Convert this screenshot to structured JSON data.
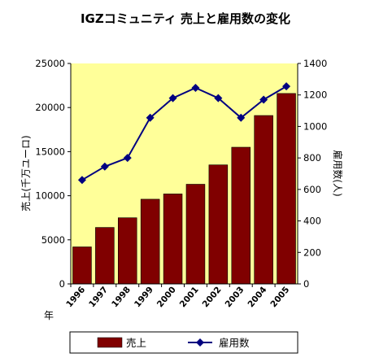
{
  "chart_data": {
    "type": "bar",
    "title": "IGZコミュニティ 売上と雇用数の変化",
    "xlabel": "年",
    "ylabel": "売上(千万ユーロ)",
    "y2label": "雇用数(人)",
    "categories": [
      "1996",
      "1997",
      "1998",
      "1999",
      "2000",
      "2001",
      "2002",
      "2003",
      "2004",
      "2005"
    ],
    "ylim": [
      0,
      25000
    ],
    "y2lim": [
      0,
      1400
    ],
    "yticks": [
      "0",
      "5000",
      "10000",
      "15000",
      "20000",
      "25000"
    ],
    "y2ticks": [
      "0",
      "200",
      "400",
      "600",
      "800",
      "1000",
      "1200",
      "1400"
    ],
    "grid": false,
    "legend_position": "bottom",
    "series": [
      {
        "name": "売上",
        "type": "bar",
        "axis": "left",
        "values": [
          4200,
          6400,
          7500,
          9600,
          10200,
          11300,
          13500,
          15500,
          19100,
          21600
        ]
      },
      {
        "name": "雇用数",
        "type": "line",
        "axis": "right",
        "values": [
          660,
          745,
          800,
          1055,
          1180,
          1245,
          1180,
          1055,
          1170,
          1255
        ]
      }
    ],
    "colors": {
      "bar": "#800000",
      "line": "#000080",
      "plot_bg": "#ffff99"
    }
  }
}
